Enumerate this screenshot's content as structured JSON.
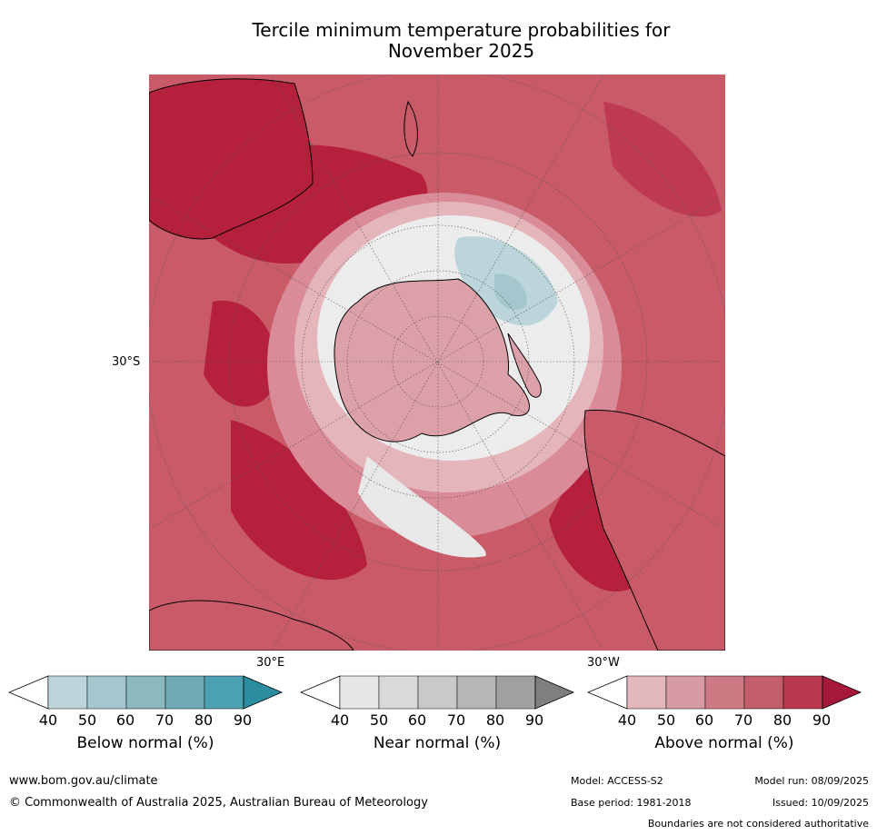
{
  "title_line1": "Tercile minimum temperature probabilities for",
  "title_line2": "November 2025",
  "map": {
    "projection": "south polar stereographic",
    "lat_label": "30°S",
    "lon_labels": [
      "30°E",
      "30°W"
    ]
  },
  "colorbars": [
    {
      "title": "Below normal (%)",
      "ticks": [
        "40",
        "50",
        "60",
        "70",
        "80",
        "90"
      ],
      "colors": [
        "#ffffff",
        "#bcd5db",
        "#a4c7cd",
        "#8cb9c0",
        "#6eabb5",
        "#4ca1b0",
        "#2a8ea0"
      ]
    },
    {
      "title": "Near normal (%)",
      "ticks": [
        "40",
        "50",
        "60",
        "70",
        "80",
        "90"
      ],
      "colors": [
        "#ffffff",
        "#e6e6e6",
        "#d9d9d9",
        "#c9c9c9",
        "#b6b6b6",
        "#a0a0a0",
        "#7f7f7f"
      ]
    },
    {
      "title": "Above normal (%)",
      "ticks": [
        "40",
        "50",
        "60",
        "70",
        "80",
        "90"
      ],
      "colors": [
        "#ffffff",
        "#e3b8bd",
        "#d79ca3",
        "#cc7b85",
        "#c35f6c",
        "#b93950",
        "#a5183a"
      ]
    }
  ],
  "footer": {
    "url": "www.bom.gov.au/climate",
    "copyright": "© Commonwealth of Australia 2025, Australian Bureau of Meteorology",
    "model": "Model: ACCESS-S2",
    "model_run": "Model run: 08/09/2025",
    "base_period": "Base period: 1981-2018",
    "issued": "Issued: 10/09/2025",
    "disclaimer": "Boundaries are not considered authoritative"
  }
}
